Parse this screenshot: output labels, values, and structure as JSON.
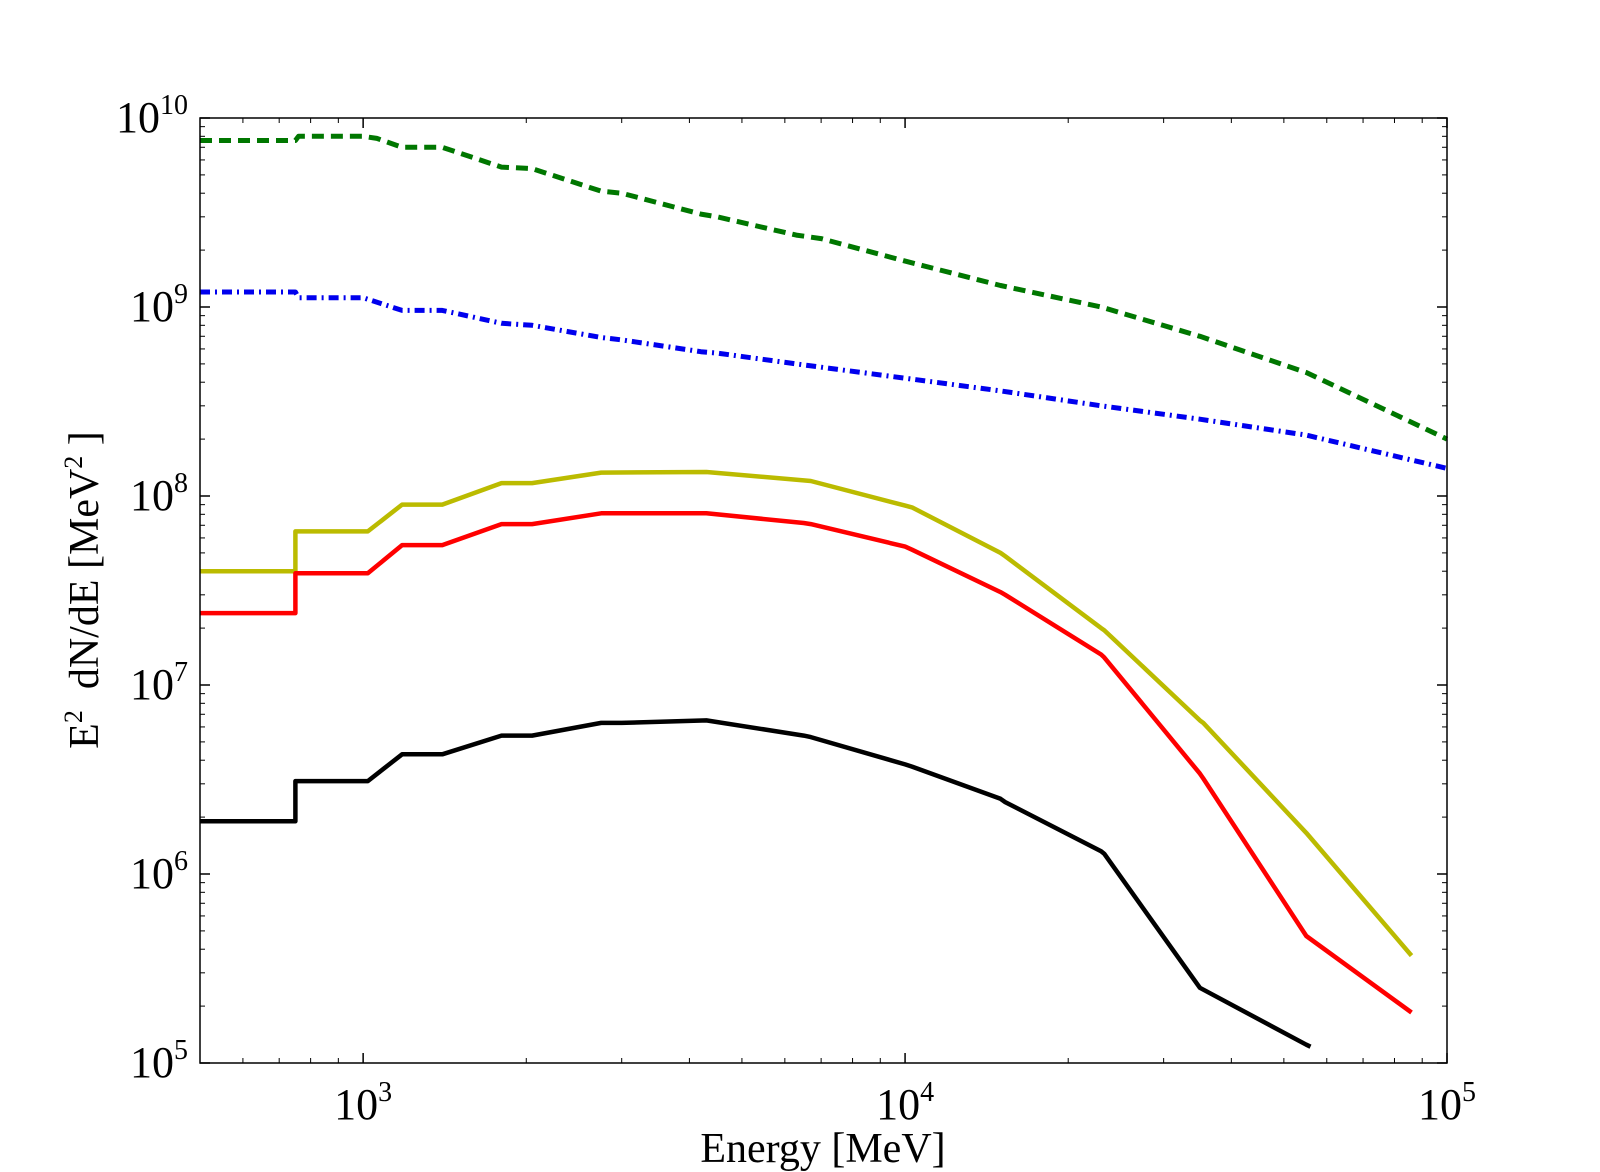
{
  "chart_data": {
    "type": "line",
    "title": "",
    "xscale": "log",
    "yscale": "log",
    "xlim": [
      500,
      100000
    ],
    "ylim": [
      100000,
      10000000000
    ],
    "xlabel": "Energy [MeV]",
    "ylabel": {
      "prefix": "E",
      "prefix_sup": "2",
      "middle": "  dN/dE [MeV",
      "unit_sup": "2",
      "suffix": " ]"
    },
    "x_ticks": [
      {
        "value": 1000,
        "base": "10",
        "exp": "3"
      },
      {
        "value": 10000,
        "base": "10",
        "exp": "4"
      },
      {
        "value": 100000,
        "base": "10",
        "exp": "5"
      }
    ],
    "y_ticks": [
      {
        "value": 100000,
        "base": "10",
        "exp": "5"
      },
      {
        "value": 1000000,
        "base": "10",
        "exp": "6"
      },
      {
        "value": 10000000,
        "base": "10",
        "exp": "7"
      },
      {
        "value": 100000000,
        "base": "10",
        "exp": "8"
      },
      {
        "value": 1000000000,
        "base": "10",
        "exp": "9"
      },
      {
        "value": 10000000000,
        "base": "10",
        "exp": "10"
      }
    ],
    "grid": false,
    "series": [
      {
        "name": "green-dashed",
        "color": "#007700",
        "style": "dashed",
        "points": [
          [
            500,
            7600000000.0
          ],
          [
            750,
            7600000000.0
          ],
          [
            760,
            8000000000.0
          ],
          [
            1000,
            8000000000.0
          ],
          [
            1060,
            7800000000.0
          ],
          [
            1180,
            7000000000.0
          ],
          [
            1400,
            7000000000.0
          ],
          [
            1800,
            5500000000.0
          ],
          [
            2050,
            5400000000.0
          ],
          [
            2750,
            4100000000.0
          ],
          [
            3000,
            4000000000.0
          ],
          [
            4200,
            3100000000.0
          ],
          [
            4500,
            3000000000.0
          ],
          [
            6300,
            2400000000.0
          ],
          [
            7000,
            2300000000.0
          ],
          [
            10000,
            1750000000.0
          ],
          [
            15000,
            1300000000.0
          ],
          [
            23000,
            1000000000.0
          ],
          [
            35000,
            700000000.0
          ],
          [
            55000,
            450000000.0
          ],
          [
            100000,
            200000000.0
          ]
        ]
      },
      {
        "name": "blue-dashdot",
        "color": "#0000ee",
        "style": "dashdot",
        "points": [
          [
            500,
            1200000000.0
          ],
          [
            750,
            1200000000.0
          ],
          [
            760,
            1120000000.0
          ],
          [
            1000,
            1120000000.0
          ],
          [
            1180,
            960000000.0
          ],
          [
            1400,
            960000000.0
          ],
          [
            1800,
            820000000.0
          ],
          [
            2050,
            800000000.0
          ],
          [
            2750,
            690000000.0
          ],
          [
            3000,
            670000000.0
          ],
          [
            4200,
            580000000.0
          ],
          [
            4500,
            570000000.0
          ],
          [
            6300,
            500000000.0
          ],
          [
            7000,
            480000000.0
          ],
          [
            10000,
            420000000.0
          ],
          [
            15000,
            360000000.0
          ],
          [
            23000,
            300000000.0
          ],
          [
            35000,
            255000000.0
          ],
          [
            55000,
            210000000.0
          ],
          [
            100000,
            140000000.0
          ]
        ]
      },
      {
        "name": "olive-solid",
        "color": "#bbbb00",
        "style": "solid",
        "points": [
          [
            500,
            40000000.0
          ],
          [
            750,
            40000000.0
          ],
          [
            750,
            65000000.0
          ],
          [
            1020,
            65000000.0
          ],
          [
            1180,
            90000000.0
          ],
          [
            1400,
            90000000.0
          ],
          [
            1800,
            117000000.0
          ],
          [
            2050,
            117000000.0
          ],
          [
            2750,
            133000000.0
          ],
          [
            4300,
            134000000.0
          ],
          [
            6500,
            121000000.0
          ],
          [
            6700,
            120000000.0
          ],
          [
            10000,
            89000000.0
          ],
          [
            10300,
            87000000.0
          ],
          [
            15000,
            50000000.0
          ],
          [
            15300,
            48000000.0
          ],
          [
            23000,
            20000000.0
          ],
          [
            23300,
            19500000.0
          ],
          [
            35000,
            6500000.0
          ],
          [
            35500,
            6300000.0
          ],
          [
            55000,
            1650000.0
          ],
          [
            86000,
            370000.0
          ]
        ]
      },
      {
        "name": "red-solid",
        "color": "#ff0000",
        "style": "solid",
        "points": [
          [
            500,
            24000000.0
          ],
          [
            750,
            24000000.0
          ],
          [
            750,
            39000000.0
          ],
          [
            1020,
            39000000.0
          ],
          [
            1180,
            55000000.0
          ],
          [
            1400,
            55000000.0
          ],
          [
            1800,
            71000000.0
          ],
          [
            2050,
            71000000.0
          ],
          [
            2750,
            81000000.0
          ],
          [
            4300,
            81000000.0
          ],
          [
            6500,
            72000000.0
          ],
          [
            6700,
            71000000.0
          ],
          [
            10000,
            54000000.0
          ],
          [
            10300,
            52000000.0
          ],
          [
            15000,
            31000000.0
          ],
          [
            15300,
            30000000.0
          ],
          [
            23000,
            14500000.0
          ],
          [
            23300,
            14000000.0
          ],
          [
            35000,
            3400000.0
          ],
          [
            35500,
            3200000.0
          ],
          [
            55000,
            470000.0
          ],
          [
            86000,
            185000.0
          ]
        ]
      },
      {
        "name": "black-solid",
        "color": "#000000",
        "style": "solid",
        "points": [
          [
            500,
            1900000.0
          ],
          [
            750,
            1900000.0
          ],
          [
            750,
            3100000.0
          ],
          [
            1020,
            3100000.0
          ],
          [
            1180,
            4300000.0
          ],
          [
            1400,
            4300000.0
          ],
          [
            1800,
            5400000.0
          ],
          [
            2050,
            5400000.0
          ],
          [
            2750,
            6300000.0
          ],
          [
            3000,
            6300000.0
          ],
          [
            4300,
            6500000.0
          ],
          [
            6500,
            5400000.0
          ],
          [
            6700,
            5300000.0
          ],
          [
            10000,
            3800000.0
          ],
          [
            10300,
            3700000.0
          ],
          [
            15000,
            2500000.0
          ],
          [
            15300,
            2400000.0
          ],
          [
            23000,
            1320000.0
          ],
          [
            23300,
            1280000.0
          ],
          [
            35000,
            250000.0
          ],
          [
            55000,
            125000.0
          ],
          [
            56000,
            122000.0
          ]
        ]
      }
    ]
  }
}
